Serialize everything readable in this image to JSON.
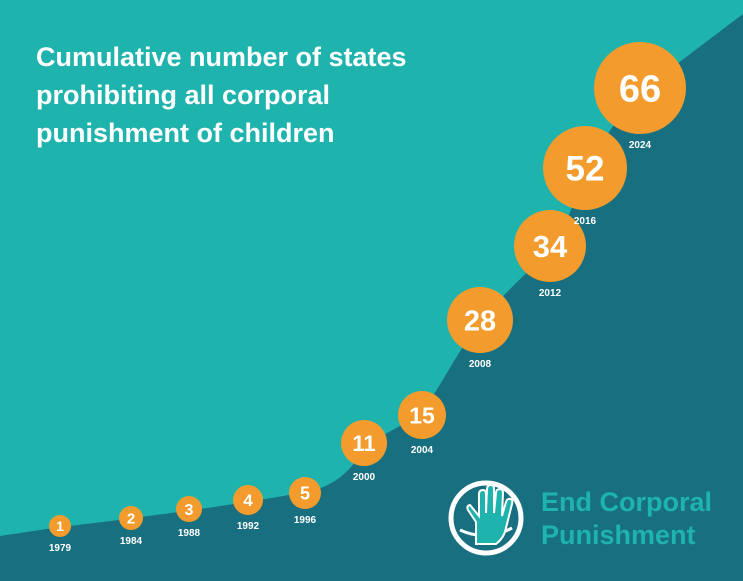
{
  "title_lines": [
    "Cumulative number of states",
    "prohibiting all corporal",
    "punishment of children"
  ],
  "brand": {
    "line1": "End Corporal",
    "line2": "Punishment",
    "logo_icon": "open-hand-globe-icon"
  },
  "colors": {
    "background": "#1fb3ad",
    "area": "#186f80",
    "bubble": "#f39c2d",
    "text": "#ffffff"
  },
  "chart_data": {
    "type": "area",
    "title": "Cumulative number of states prohibiting all corporal punishment of children",
    "x": [
      "1979",
      "1984",
      "1988",
      "1992",
      "1996",
      "2000",
      "2004",
      "2008",
      "2012",
      "2016",
      "2024"
    ],
    "values": [
      1,
      2,
      3,
      4,
      5,
      11,
      15,
      28,
      34,
      52,
      66
    ],
    "labels": [
      "1",
      "2",
      "3",
      "4",
      "5",
      "11",
      "15",
      "28",
      "34",
      "52",
      "66"
    ],
    "xlabel": "",
    "ylabel": "",
    "legend": "none",
    "grid": false
  }
}
